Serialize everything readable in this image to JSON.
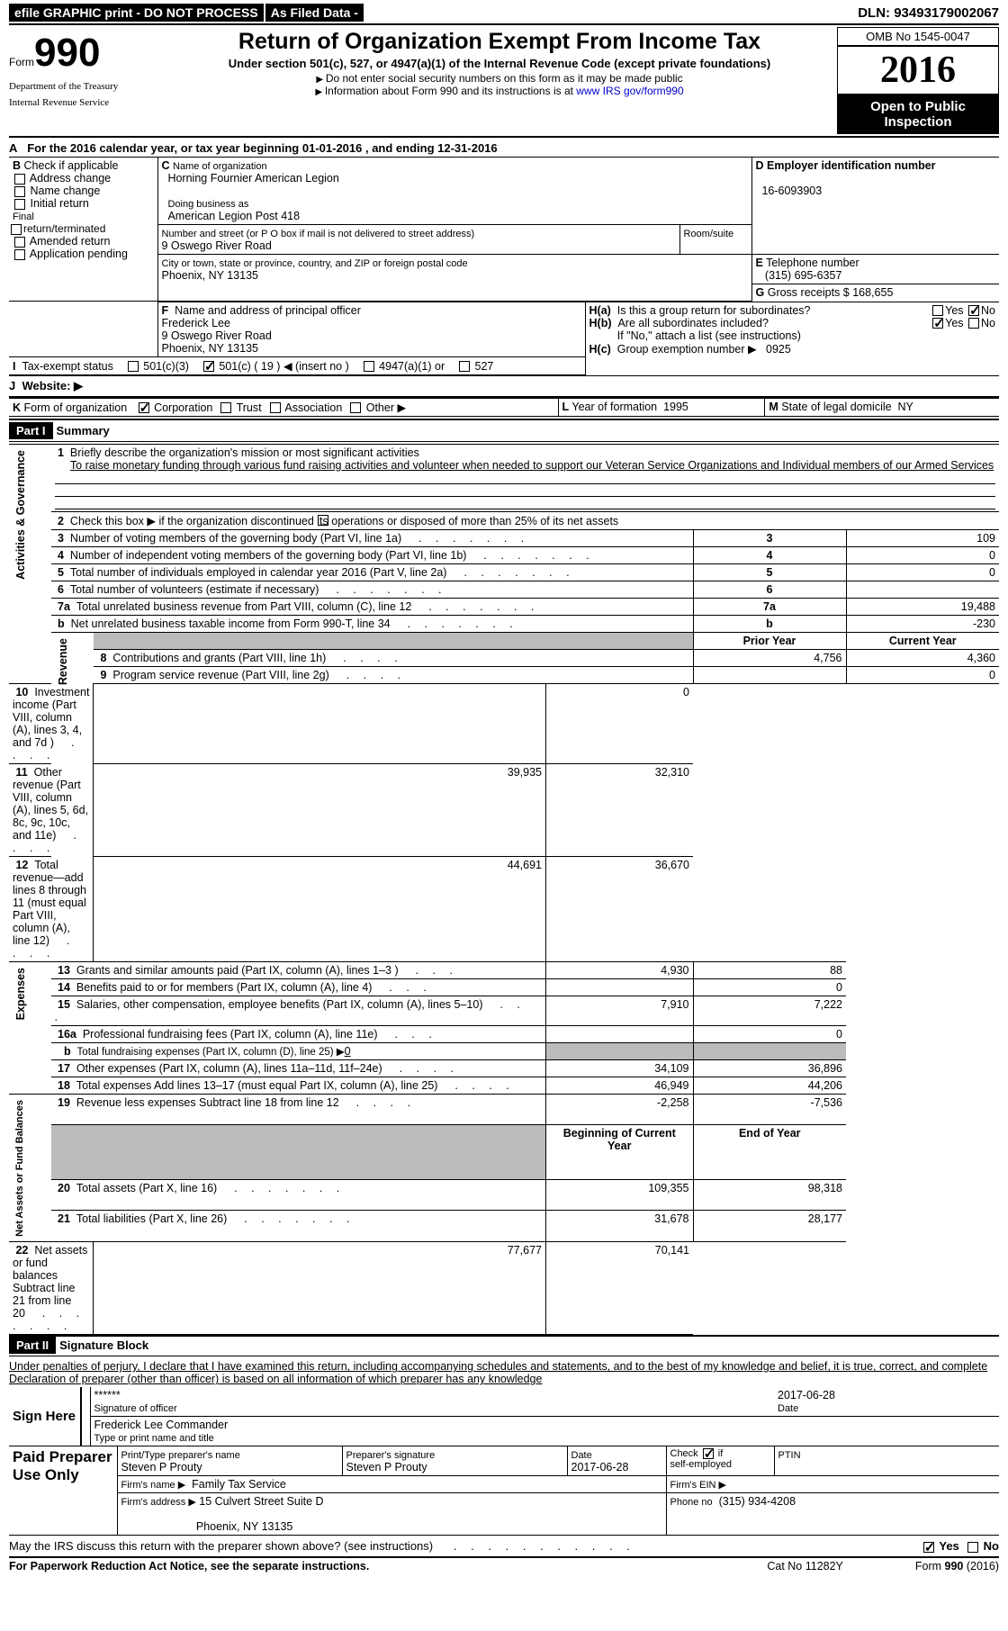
{
  "header": {
    "efile": "efile GRAPHIC print - DO NOT PROCESS",
    "asFiled": "As Filed Data -",
    "dln_label": "DLN:",
    "dln": "93493179002067",
    "formword": "Form",
    "formno": "990",
    "dept1": "Department of the Treasury",
    "dept2": "Internal Revenue Service",
    "title": "Return of Organization Exempt From Income Tax",
    "sub": "Under section 501(c), 527, or 4947(a)(1) of the Internal Revenue Code (except private foundations)",
    "note1": "Do not enter social security numbers on this form as it may be made public",
    "note2_a": "Information about Form 990 and its instructions is at ",
    "note2_link": "www IRS gov/form990",
    "omb_label": "OMB No",
    "omb": "1545-0047",
    "year": "2016",
    "inspect": "Open to Public Inspection"
  },
  "rowA": {
    "label": "A",
    "text_a": "For the 2016 calendar year, or tax year beginning ",
    "begin": "01-01-2016",
    "text_b": " , and ending ",
    "end": "12-31-2016"
  },
  "boxB": {
    "label": "B",
    "title": "Check if applicable",
    "opts": [
      "Address change",
      "Name change",
      "Initial return",
      "Final return/terminated",
      "Amended return",
      "Application pending"
    ]
  },
  "boxC": {
    "label": "C",
    "name_label": "Name of organization",
    "name": "Horning Fournier American Legion",
    "dba_label": "Doing business as",
    "dba": "American Legion Post 418",
    "street_label": "Number and street (or P O box if mail is not delivered to street address)",
    "room_label": "Room/suite",
    "street": "9 Oswego River Road",
    "city_label": "City or town, state or province, country, and ZIP or foreign postal code",
    "city": "Phoenix, NY  13135"
  },
  "boxD": {
    "label": "D",
    "title": "Employer identification number",
    "val": "16-6093903"
  },
  "boxE": {
    "label": "E",
    "title": "Telephone number",
    "val": "(315) 695-6357"
  },
  "boxG": {
    "label": "G",
    "title": "Gross receipts $",
    "val": "168,655"
  },
  "boxF": {
    "label": "F",
    "title": "Name and address of principal officer",
    "name": "Frederick Lee",
    "addr1": "9 Oswego River Road",
    "addr2": "Phoenix, NY  13135"
  },
  "boxH": {
    "a_label": "H(a)",
    "a_text": "Is this a group return for subordinates?",
    "b_label": "H(b)",
    "b_text": "Are all subordinates included?",
    "b_note": "If \"No,\" attach a list  (see instructions)",
    "c_label": "H(c)",
    "c_text": "Group exemption number ▶",
    "c_val": "0925",
    "yes": "Yes",
    "no": "No"
  },
  "rowI": {
    "label": "I",
    "title": "Tax-exempt status",
    "o1": "501(c)(3)",
    "o2": "501(c) ( 19 )",
    "o2b": "(insert no )",
    "o3": "4947(a)(1) or",
    "o4": "527"
  },
  "rowJ": {
    "label": "J",
    "title": "Website: ▶"
  },
  "rowK": {
    "label": "K",
    "title": "Form of organization",
    "o1": "Corporation",
    "o2": "Trust",
    "o3": "Association",
    "o4": "Other ▶"
  },
  "rowL": {
    "label": "L",
    "title": "Year of formation",
    "val": "1995"
  },
  "rowM": {
    "label": "M",
    "title": "State of legal domicile",
    "val": "NY"
  },
  "part1": {
    "num": "Part I",
    "title": "Summary"
  },
  "summary": {
    "q1": "Briefly describe the organization's mission or most significant activities",
    "mission": "To raise monetary funding through various fund raising activities and volunteer when needed to support our Veteran Service Organizations and Individual members of our Armed Services",
    "q2": "Check this box ▶        if the organization discontinued its operations or disposed of more than 25% of its net assets",
    "sideA": "Activities & Governance",
    "sideR": "Revenue",
    "sideE": "Expenses",
    "sideN": "Net Assets or Fund Balances",
    "prior": "Prior Year",
    "current": "Current Year",
    "begCY": "Beginning of Current Year",
    "endY": "End of Year",
    "lines_single": [
      {
        "n": "3",
        "t": "Number of voting members of the governing body (Part VI, line 1a)",
        "v": "109"
      },
      {
        "n": "4",
        "t": "Number of independent voting members of the governing body (Part VI, line 1b)",
        "v": "0"
      },
      {
        "n": "5",
        "t": "Total number of individuals employed in calendar year 2016 (Part V, line 2a)",
        "v": "0"
      },
      {
        "n": "6",
        "t": "Total number of volunteers (estimate if necessary)",
        "v": ""
      },
      {
        "n": "7a",
        "t": "Total unrelated business revenue from Part VIII, column (C), line 12",
        "v": "19,488"
      },
      {
        "n": "b",
        "t": "Net unrelated business taxable income from Form 990-T, line 34",
        "v": "-230"
      }
    ],
    "rev": [
      {
        "n": "8",
        "t": "Contributions and grants (Part VIII, line 1h)",
        "p": "4,756",
        "c": "4,360"
      },
      {
        "n": "9",
        "t": "Program service revenue (Part VIII, line 2g)",
        "p": "",
        "c": "0"
      },
      {
        "n": "10",
        "t": "Investment income (Part VIII, column (A), lines 3, 4, and 7d )",
        "p": "",
        "c": "0"
      },
      {
        "n": "11",
        "t": "Other revenue (Part VIII, column (A), lines 5, 6d, 8c, 9c, 10c, and 11e)",
        "p": "39,935",
        "c": "32,310"
      },
      {
        "n": "12",
        "t": "Total revenue—add lines 8 through 11 (must equal Part VIII, column (A), line 12)",
        "p": "44,691",
        "c": "36,670"
      }
    ],
    "exp": [
      {
        "n": "13",
        "t": "Grants and similar amounts paid (Part IX, column (A), lines 1–3 )",
        "p": "4,930",
        "c": "88"
      },
      {
        "n": "14",
        "t": "Benefits paid to or for members (Part IX, column (A), line 4)",
        "p": "",
        "c": "0"
      },
      {
        "n": "15",
        "t": "Salaries, other compensation, employee benefits (Part IX, column (A), lines 5–10)",
        "p": "7,910",
        "c": "7,222"
      },
      {
        "n": "16a",
        "t": "Professional fundraising fees (Part IX, column (A), line 11e)",
        "p": "",
        "c": "0"
      }
    ],
    "exp_b": {
      "n": "b",
      "t": "Total fundraising expenses (Part IX, column (D), line 25) ▶",
      "v": "0"
    },
    "exp2": [
      {
        "n": "17",
        "t": "Other expenses (Part IX, column (A), lines 11a–11d, 11f–24e)",
        "p": "34,109",
        "c": "36,896"
      },
      {
        "n": "18",
        "t": "Total expenses  Add lines 13–17 (must equal Part IX, column (A), line 25)",
        "p": "46,949",
        "c": "44,206"
      },
      {
        "n": "19",
        "t": "Revenue less expenses  Subtract line 18 from line 12",
        "p": "-2,258",
        "c": "-7,536"
      }
    ],
    "net": [
      {
        "n": "20",
        "t": "Total assets (Part X, line 16)",
        "p": "109,355",
        "c": "98,318"
      },
      {
        "n": "21",
        "t": "Total liabilities (Part X, line 26)",
        "p": "31,678",
        "c": "28,177"
      },
      {
        "n": "22",
        "t": "Net assets or fund balances  Subtract line 21 from line 20",
        "p": "77,677",
        "c": "70,141"
      }
    ]
  },
  "part2": {
    "num": "Part II",
    "title": "Signature Block"
  },
  "sig": {
    "decl": "Under penalties of perjury, I declare that I have examined this return, including accompanying schedules and statements, and to the best of my knowledge and belief, it is true, correct, and complete  Declaration of preparer (other than officer) is based on all information of which preparer has any knowledge",
    "signHere": "Sign Here",
    "stars": "******",
    "sigOff": "Signature of officer",
    "date1": "2017-06-28",
    "dateL": "Date",
    "name": "Frederick Lee Commander",
    "typeL": "Type or print name and title",
    "paid": "Paid Preparer Use Only",
    "prepName_l": "Print/Type preparer's name",
    "prepName": "Steven P Prouty",
    "prepSig_l": "Preparer's signature",
    "prepSig": "Steven P Prouty",
    "date2": "2017-06-28",
    "chkSelf": "Check         if self-employed",
    "ptin_l": "PTIN",
    "firmName_l": "Firm's name    ▶",
    "firmName": "Family Tax Service",
    "firmEIN_l": "Firm's EIN ▶",
    "firmAddr_l": "Firm's address ▶",
    "firmAddr1": "15 Culvert Street Suite D",
    "firmAddr2": "Phoenix, NY  13135",
    "phone_l": "Phone no",
    "phone": "(315) 934-4208",
    "discuss": "May the IRS discuss this return with the preparer shown above? (see instructions)"
  },
  "footer": {
    "l": "For Paperwork Reduction Act Notice, see the separate instructions.",
    "m": "Cat No 11282Y",
    "r": "Form 990 (2016)"
  }
}
